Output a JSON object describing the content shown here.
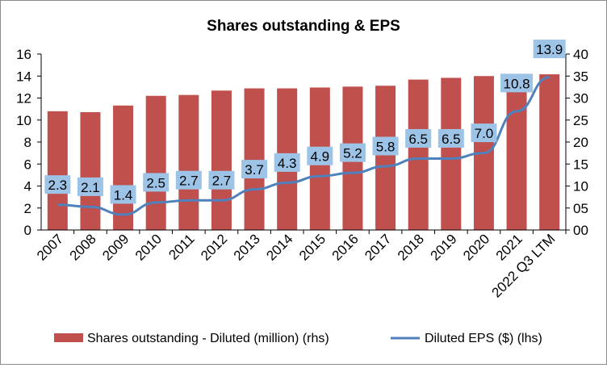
{
  "chart_data": {
    "type": "bar+line",
    "title": "Shares outstanding & EPS",
    "categories": [
      "2007",
      "2008",
      "2009",
      "2010",
      "2011",
      "2012",
      "2013",
      "2014",
      "2015",
      "2016",
      "2017",
      "2018",
      "2019",
      "2020",
      "2021",
      "2022 Q3 LTM"
    ],
    "series": [
      {
        "name": "Shares outstanding - Diluted (million) (rhs)",
        "type": "bar",
        "axis": "right",
        "color": "#c0504d",
        "values": [
          27.0,
          26.8,
          28.3,
          30.5,
          30.7,
          31.7,
          32.2,
          32.2,
          32.4,
          32.6,
          32.8,
          34.2,
          34.6,
          35.0,
          35.3,
          35.4
        ]
      },
      {
        "name": "Diluted EPS ($) (lhs)",
        "type": "line",
        "axis": "left",
        "color": "#4f81bd",
        "values": [
          2.3,
          2.1,
          1.4,
          2.5,
          2.7,
          2.7,
          3.7,
          4.3,
          4.9,
          5.2,
          5.8,
          6.5,
          6.5,
          7.0,
          10.8,
          13.9
        ],
        "data_labels": [
          "2.3",
          "2.1",
          "1.4",
          "2.5",
          "2.7",
          "2.7",
          "3.7",
          "4.3",
          "4.9",
          "5.2",
          "5.8",
          "6.5",
          "6.5",
          "7.0",
          "10.8",
          "13.9"
        ],
        "label_color": "#9dc3e6"
      }
    ],
    "y_left": {
      "range": [
        0,
        16
      ],
      "ticks": [
        "0",
        "2",
        "4",
        "6",
        "8",
        "10",
        "12",
        "14",
        "16"
      ]
    },
    "y_right": {
      "range": [
        0,
        40
      ],
      "ticks": [
        "00",
        "05",
        "10",
        "15",
        "20",
        "25",
        "30",
        "35",
        "40"
      ]
    },
    "grid": false,
    "legend_position": "bottom"
  }
}
